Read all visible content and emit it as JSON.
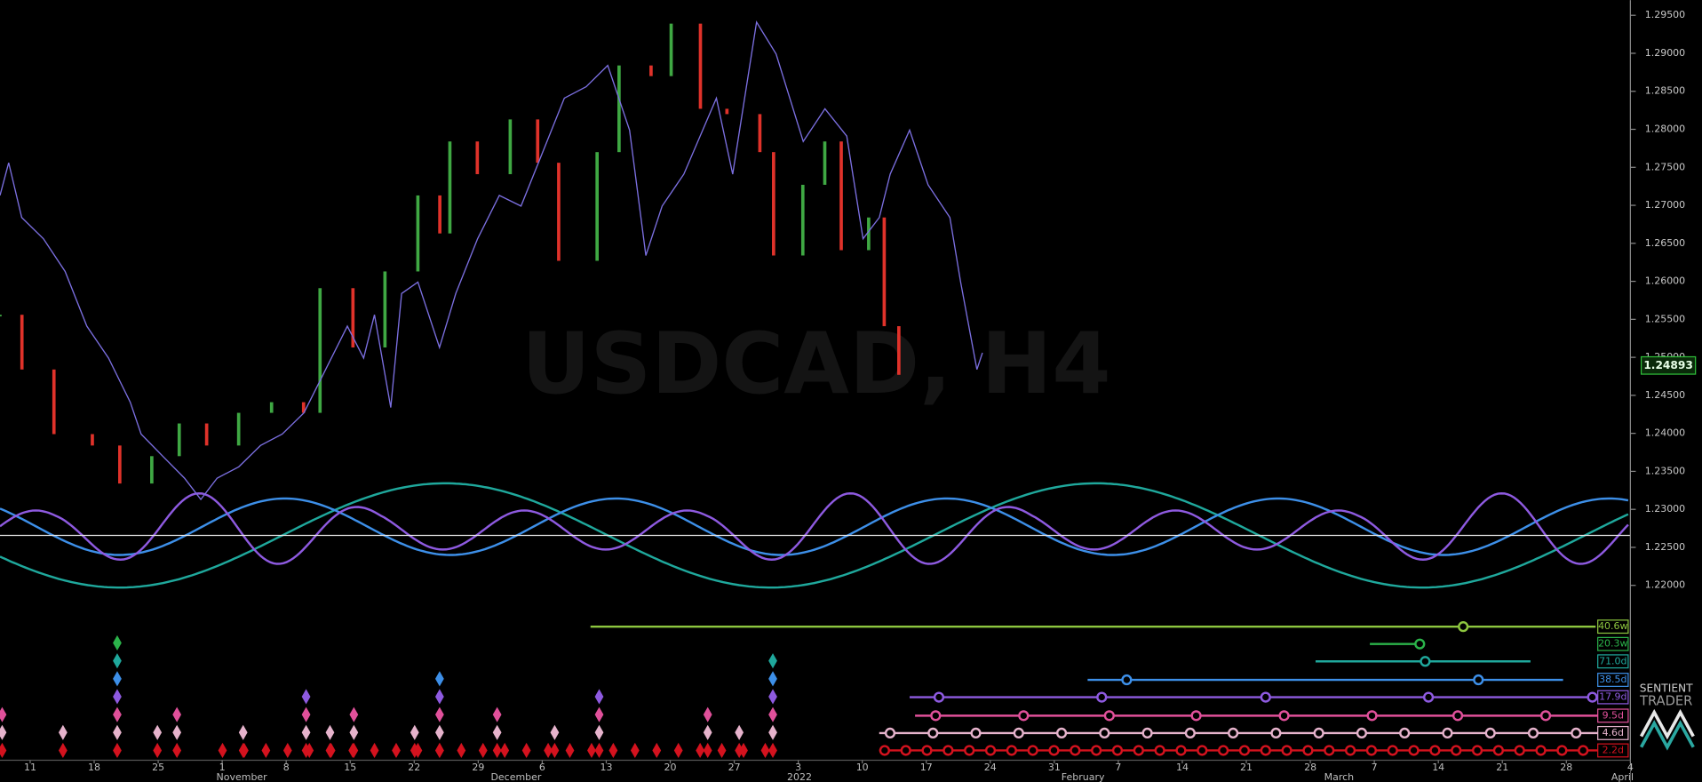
{
  "chart_data": {
    "type": "candlestick",
    "title": "USDCAD, H4",
    "ylim": [
      1.197,
      1.297
    ],
    "yticks": [
      {
        "value": 1.22,
        "label": "1.22000"
      },
      {
        "value": 1.225,
        "label": "1.22500"
      },
      {
        "value": 1.23,
        "label": "1.23000"
      },
      {
        "value": 1.235,
        "label": "1.23500"
      },
      {
        "value": 1.24,
        "label": "1.24000"
      },
      {
        "value": 1.245,
        "label": "1.24500"
      },
      {
        "value": 1.25,
        "label": "1.25000"
      },
      {
        "value": 1.255,
        "label": "1.25500"
      },
      {
        "value": 1.26,
        "label": "1.26000"
      },
      {
        "value": 1.265,
        "label": "1.26500"
      },
      {
        "value": 1.27,
        "label": "1.27000"
      },
      {
        "value": 1.275,
        "label": "1.27500"
      },
      {
        "value": 1.28,
        "label": "1.28000"
      },
      {
        "value": 1.285,
        "label": "1.28500"
      },
      {
        "value": 1.29,
        "label": "1.29000"
      },
      {
        "value": 1.295,
        "label": "1.29500"
      }
    ],
    "xlim": [
      -3.3,
      175
    ],
    "xticks": [
      {
        "value": 0,
        "label": "11"
      },
      {
        "value": 7,
        "label": "18"
      },
      {
        "value": 14,
        "label": "25"
      },
      {
        "value": 21,
        "label": "1"
      },
      {
        "value": 28,
        "label": "8"
      },
      {
        "value": 35,
        "label": "15"
      },
      {
        "value": 42,
        "label": "22"
      },
      {
        "value": 49,
        "label": "29"
      },
      {
        "value": 56,
        "label": "6"
      },
      {
        "value": 63,
        "label": "13"
      },
      {
        "value": 70,
        "label": "20"
      },
      {
        "value": 77,
        "label": "27"
      },
      {
        "value": 84,
        "label": "3"
      },
      {
        "value": 91,
        "label": "10"
      },
      {
        "value": 98,
        "label": "17"
      },
      {
        "value": 105,
        "label": "24"
      },
      {
        "value": 112,
        "label": "31"
      },
      {
        "value": 119,
        "label": "7"
      },
      {
        "value": 126,
        "label": "14"
      },
      {
        "value": 133,
        "label": "21"
      },
      {
        "value": 140,
        "label": "28"
      },
      {
        "value": 147,
        "label": "7"
      },
      {
        "value": 154,
        "label": "14"
      },
      {
        "value": 161,
        "label": "21"
      },
      {
        "value": 168,
        "label": "28"
      },
      {
        "value": 175,
        "label": "4"
      }
    ],
    "month_ticks": [
      {
        "value": 21,
        "label": "November"
      },
      {
        "value": 51,
        "label": "December"
      },
      {
        "value": 82,
        "label": "2022"
      },
      {
        "value": 113,
        "label": "February"
      },
      {
        "value": 141,
        "label": "March"
      },
      {
        "value": 172,
        "label": "April"
      }
    ],
    "series": [
      {
        "kind": "candles",
        "up_color": "#3fa843",
        "down_color": "#e0322a",
        "x": [
          -3.3,
          -0.9,
          2.6,
          6.8,
          9.8,
          13.3,
          16.3,
          19.3,
          22.8,
          26.4,
          29.9,
          31.7,
          35.3,
          38.8,
          42.4,
          44.8,
          45.9,
          48.9,
          52.5,
          55.5,
          57.8,
          62.0,
          64.4,
          67.9,
          70.1,
          73.3,
          76.2,
          79.8,
          81.3,
          84.5,
          86.9,
          88.7,
          91.7,
          93.4,
          95.0
        ],
        "values": [
          1.2556,
          1.2484,
          1.2399,
          1.2384,
          1.2334,
          1.237,
          1.2413,
          1.2384,
          1.2427,
          1.2441,
          1.2427,
          1.2591,
          1.2513,
          1.2613,
          1.2713,
          1.2663,
          1.2784,
          1.2741,
          1.2813,
          1.2756,
          1.2627,
          1.277,
          1.2884,
          1.287,
          1.2939,
          1.2827,
          1.282,
          1.277,
          1.2634,
          1.2727,
          1.2784,
          1.2641,
          1.2684,
          1.2541,
          1.2477
        ]
      },
      {
        "kind": "line",
        "color": "#7b6fe0",
        "x": [
          -3.3,
          -2.35,
          -0.93,
          1.45,
          3.82,
          6.2,
          8.57,
          10.94,
          12.13,
          14.5,
          16.88,
          18.66,
          20.44,
          22.81,
          25.19,
          27.56,
          29.94,
          32.31,
          34.69,
          36.47,
          37.66,
          39.44,
          40.62,
          42.4,
          44.77,
          46.55,
          48.93,
          51.3,
          53.68,
          56.05,
          58.42,
          60.8,
          63.17,
          65.55,
          67.33,
          69.11,
          71.49,
          75.05,
          76.83,
          79.44,
          81.58,
          84.55,
          86.92,
          89.3,
          91.08,
          92.86,
          94.05,
          96.18,
          98.2,
          100.58,
          101.76,
          103.54,
          104.14
        ],
        "values": [
          1.2713,
          1.2756,
          1.2684,
          1.2656,
          1.2613,
          1.2541,
          1.2499,
          1.2441,
          1.2399,
          1.237,
          1.2341,
          1.2313,
          1.2341,
          1.2356,
          1.2384,
          1.2399,
          1.2427,
          1.2484,
          1.2541,
          1.2499,
          1.2556,
          1.2434,
          1.2584,
          1.2599,
          1.2513,
          1.2584,
          1.2656,
          1.2713,
          1.2699,
          1.277,
          1.2841,
          1.2856,
          1.2884,
          1.2799,
          1.2634,
          1.2699,
          1.2741,
          1.2841,
          1.2741,
          1.2941,
          1.2899,
          1.2784,
          1.2827,
          1.2791,
          1.2656,
          1.2684,
          1.2741,
          1.2799,
          1.2727,
          1.2684,
          1.2599,
          1.2484,
          1.2506
        ]
      }
    ],
    "last_price": {
      "value": 1.24893,
      "label": "1.24893",
      "color": "#2fbf3a"
    },
    "cycles": [
      {
        "label": "40.6w",
        "color": "#8dc63f"
      },
      {
        "label": "20.3w",
        "color": "#2bb34a"
      },
      {
        "label": "71.0d",
        "color": "#1fa89c"
      },
      {
        "label": "38.5d",
        "color": "#3d8fe8"
      },
      {
        "label": "17.9d",
        "color": "#8e5ae0"
      },
      {
        "label": "9.5d",
        "color": "#e0509a"
      },
      {
        "label": "4.6d",
        "color": "#e6b3cc"
      },
      {
        "label": "2.2d",
        "color": "#d4121e"
      }
    ],
    "brand_top": "SENTIENT",
    "brand_bottom": "TRADER"
  }
}
